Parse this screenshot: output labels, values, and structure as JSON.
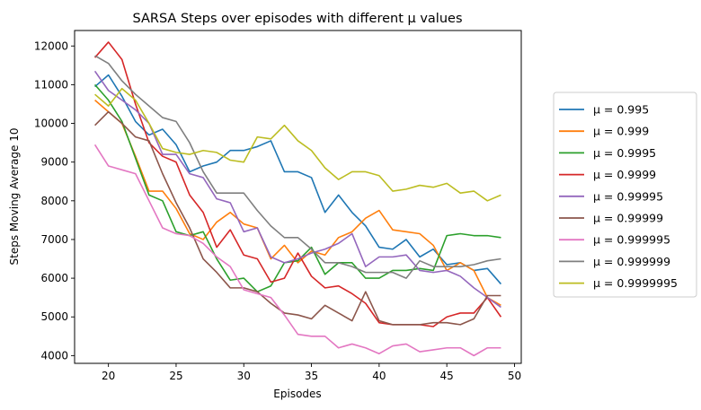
{
  "chart_data": {
    "type": "line",
    "title": "SARSA Steps over episodes with different μ values",
    "xlabel": "Episodes",
    "ylabel": "Steps Moving Average 10",
    "xlim": [
      17.5,
      50.5
    ],
    "ylim": [
      3800,
      12400
    ],
    "xticks": [
      20,
      25,
      30,
      35,
      40,
      45,
      50
    ],
    "yticks": [
      4000,
      5000,
      6000,
      7000,
      8000,
      9000,
      10000,
      11000,
      12000
    ],
    "grid": false,
    "legend": "outside-right",
    "x": [
      19,
      20,
      21,
      22,
      23,
      24,
      25,
      26,
      27,
      28,
      29,
      30,
      31,
      32,
      33,
      34,
      35,
      36,
      37,
      38,
      39,
      40,
      41,
      42,
      43,
      44,
      45,
      46,
      47,
      48,
      49
    ],
    "series": [
      {
        "name": "μ = 0.995",
        "color": "#1f77b4",
        "values": [
          10950,
          11250,
          10700,
          10050,
          9700,
          9850,
          9450,
          8750,
          8900,
          9000,
          9300,
          9300,
          9400,
          9550,
          8750,
          8750,
          8600,
          7700,
          8150,
          7700,
          7350,
          6800,
          6750,
          7000,
          6550,
          6750,
          6350,
          6400,
          6200,
          6250,
          5850
        ]
      },
      {
        "name": "μ = 0.999",
        "color": "#ff7f0e",
        "values": [
          10600,
          10300,
          10000,
          9150,
          8250,
          8250,
          7800,
          7150,
          7000,
          7450,
          7700,
          7400,
          7300,
          6500,
          6850,
          6400,
          6700,
          6600,
          7050,
          7200,
          7550,
          7750,
          7250,
          7200,
          7150,
          6850,
          6200,
          6400,
          6200,
          5500,
          5300
        ]
      },
      {
        "name": "μ = 0.9995",
        "color": "#2ca02c",
        "values": [
          11000,
          10600,
          10050,
          9100,
          8150,
          8000,
          7200,
          7100,
          7200,
          6500,
          5950,
          6000,
          5650,
          5800,
          6400,
          6450,
          6800,
          6100,
          6400,
          6400,
          6000,
          6000,
          6200,
          6200,
          6250,
          6200,
          7100,
          7150,
          7100,
          7100,
          7050
        ]
      },
      {
        "name": "μ = 0.9999",
        "color": "#d62728",
        "values": [
          11700,
          12100,
          11650,
          10500,
          9500,
          9150,
          9000,
          8150,
          7700,
          6800,
          7250,
          6600,
          6500,
          5900,
          6000,
          6650,
          6050,
          5750,
          5800,
          5600,
          5350,
          4850,
          4800,
          4800,
          4800,
          4750,
          5000,
          5100,
          5100,
          5500,
          5000
        ]
      },
      {
        "name": "μ = 0.99995",
        "color": "#9467bd",
        "values": [
          11350,
          10850,
          10600,
          10350,
          10000,
          9200,
          9200,
          8700,
          8600,
          8050,
          7950,
          7200,
          7300,
          6550,
          6400,
          6500,
          6650,
          6750,
          6900,
          7150,
          6300,
          6550,
          6550,
          6600,
          6200,
          6150,
          6200,
          6050,
          5750,
          5500,
          5250
        ]
      },
      {
        "name": "μ = 0.99999",
        "color": "#8c564b",
        "values": [
          9950,
          10300,
          10000,
          9650,
          9550,
          8700,
          7950,
          7300,
          6500,
          6150,
          5750,
          5750,
          5650,
          5350,
          5100,
          5050,
          4950,
          5300,
          5100,
          4900,
          5650,
          4900,
          4800,
          4800,
          4800,
          4850,
          4850,
          4800,
          4950,
          5550,
          5550
        ]
      },
      {
        "name": "μ = 0.999995",
        "color": "#e377c2",
        "values": [
          9450,
          8900,
          8800,
          8700,
          8000,
          7300,
          7150,
          7100,
          6900,
          6550,
          6300,
          5700,
          5600,
          5500,
          5050,
          4550,
          4500,
          4500,
          4200,
          4300,
          4200,
          4050,
          4250,
          4300,
          4100,
          4150,
          4200,
          4200,
          4000,
          4200,
          4200
        ]
      },
      {
        "name": "μ = 0.999999",
        "color": "#7f7f7f",
        "values": [
          11750,
          11550,
          11100,
          10750,
          10450,
          10150,
          10050,
          9500,
          8750,
          8200,
          8200,
          8200,
          7750,
          7350,
          7050,
          7050,
          6750,
          6400,
          6400,
          6300,
          6150,
          6150,
          6150,
          6000,
          6450,
          6300,
          6300,
          6300,
          6350,
          6450,
          6500
        ]
      },
      {
        "name": "μ = 0.9999995",
        "color": "#bcbd22",
        "values": [
          10750,
          10450,
          10900,
          10600,
          10000,
          9350,
          9250,
          9200,
          9300,
          9250,
          9050,
          9000,
          9650,
          9600,
          9950,
          9550,
          9300,
          8850,
          8550,
          8750,
          8750,
          8650,
          8250,
          8300,
          8400,
          8350,
          8450,
          8200,
          8250,
          8000,
          8150
        ]
      }
    ]
  }
}
